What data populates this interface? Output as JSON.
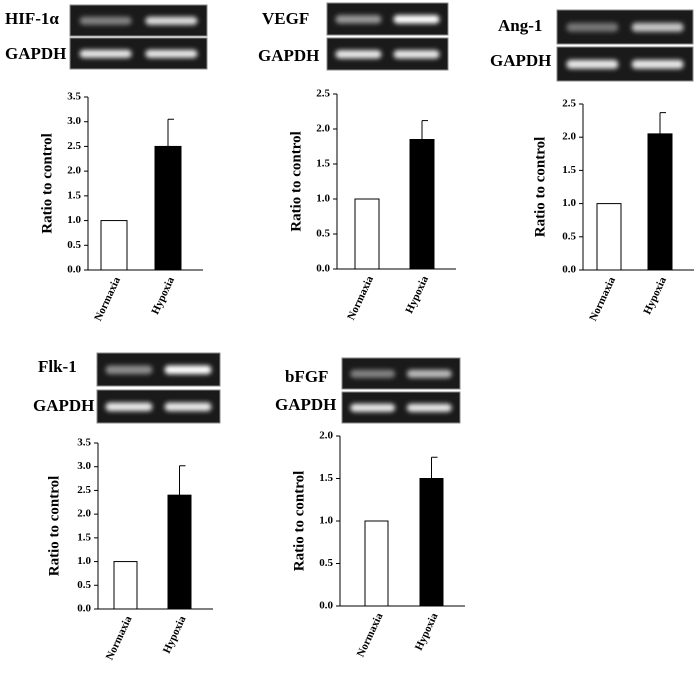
{
  "chart_data": [
    {
      "type": "bar",
      "gene": "HIF-1α",
      "control": "GAPDH",
      "ylabel": "Ratio to control",
      "categories": [
        "Normaxia",
        "Hypoxia"
      ],
      "values": [
        1.0,
        2.5
      ],
      "errors": [
        null,
        0.55
      ],
      "colors": [
        "#ffffff",
        "#000000"
      ],
      "ylim": [
        0,
        3.5
      ],
      "yticks": [
        {
          "value": 0,
          "label": "0.0"
        },
        {
          "value": 0.5,
          "label": "0.5"
        },
        {
          "value": 1,
          "label": "1.0"
        },
        {
          "value": 1.5,
          "label": "1.5"
        },
        {
          "value": 2,
          "label": "2.0"
        },
        {
          "value": 2.5,
          "label": "2.5"
        },
        {
          "value": 3,
          "label": "3.0"
        },
        {
          "value": 3.5,
          "label": "3.5"
        }
      ]
    },
    {
      "type": "bar",
      "gene": "VEGF",
      "control": "GAPDH",
      "ylabel": "Ratio to control",
      "categories": [
        "Normaxia",
        "Hypoxia"
      ],
      "values": [
        1.0,
        1.85
      ],
      "errors": [
        null,
        0.27
      ],
      "colors": [
        "#ffffff",
        "#000000"
      ],
      "ylim": [
        0,
        2.5
      ],
      "yticks": [
        {
          "value": 0,
          "label": "0.0"
        },
        {
          "value": 0.5,
          "label": "0.5"
        },
        {
          "value": 1,
          "label": "1.0"
        },
        {
          "value": 1.5,
          "label": "1.5"
        },
        {
          "value": 2,
          "label": "2.0"
        },
        {
          "value": 2.5,
          "label": "2.5"
        }
      ]
    },
    {
      "type": "bar",
      "gene": "Ang-1",
      "control": "GAPDH",
      "ylabel": "Ratio to control",
      "categories": [
        "Normaxia",
        "Hypoxia"
      ],
      "values": [
        1.0,
        2.05
      ],
      "errors": [
        null,
        0.32
      ],
      "colors": [
        "#ffffff",
        "#000000"
      ],
      "ylim": [
        0,
        2.5
      ],
      "yticks": [
        {
          "value": 0,
          "label": "0.0"
        },
        {
          "value": 0.5,
          "label": "0.5"
        },
        {
          "value": 1,
          "label": "1.0"
        },
        {
          "value": 1.5,
          "label": "1.5"
        },
        {
          "value": 2,
          "label": "2.0"
        },
        {
          "value": 2.5,
          "label": "2.5"
        }
      ]
    },
    {
      "type": "bar",
      "gene": "Flk-1",
      "control": "GAPDH",
      "ylabel": "Ratio to control",
      "categories": [
        "Normaxia",
        "Hypoxia"
      ],
      "values": [
        1.0,
        2.4
      ],
      "errors": [
        null,
        0.62
      ],
      "colors": [
        "#ffffff",
        "#000000"
      ],
      "ylim": [
        0,
        3.5
      ],
      "yticks": [
        {
          "value": 0,
          "label": "0.0"
        },
        {
          "value": 0.5,
          "label": "0.5"
        },
        {
          "value": 1,
          "label": "1.0"
        },
        {
          "value": 1.5,
          "label": "1.5"
        },
        {
          "value": 2,
          "label": "2.0"
        },
        {
          "value": 2.5,
          "label": "2.5"
        },
        {
          "value": 3,
          "label": "3.0"
        },
        {
          "value": 3.5,
          "label": "3.5"
        }
      ]
    },
    {
      "type": "bar",
      "gene": "bFGF",
      "control": "GAPDH",
      "ylabel": "Ratio to control",
      "categories": [
        "Normaxia",
        "Hypoxia"
      ],
      "values": [
        1.0,
        1.5
      ],
      "errors": [
        null,
        0.25
      ],
      "colors": [
        "#ffffff",
        "#000000"
      ],
      "ylim": [
        0,
        2.0
      ],
      "yticks": [
        {
          "value": 0,
          "label": "0.0"
        },
        {
          "value": 0.5,
          "label": "0.5"
        },
        {
          "value": 1,
          "label": "1.0"
        },
        {
          "value": 1.5,
          "label": "1.5"
        },
        {
          "value": 2,
          "label": "2.0"
        }
      ]
    }
  ]
}
